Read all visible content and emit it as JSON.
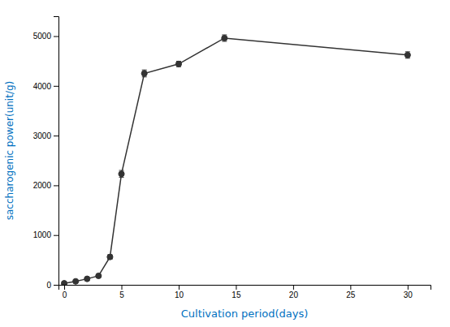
{
  "chart_data": {
    "type": "line",
    "xlabel": "Cultivation period(days)",
    "ylabel": "saccharogenic power(unit/g)",
    "x": [
      0,
      1,
      2,
      3,
      4,
      5,
      7,
      10,
      14,
      30
    ],
    "series": [
      {
        "values": [
          30,
          70,
          120,
          180,
          560,
          2230,
          4250,
          4440,
          4960,
          4620
        ],
        "errors": [
          15,
          20,
          25,
          25,
          45,
          70,
          70,
          55,
          65,
          65
        ],
        "color": "#333333",
        "marker": "circle",
        "line_style": "solid"
      }
    ],
    "xlim": [
      -0.5,
      32
    ],
    "ylim": [
      0,
      5400
    ],
    "xticks": [
      0,
      5,
      10,
      15,
      20,
      25,
      30
    ],
    "yticks": [
      0,
      1000,
      2000,
      3000,
      4000,
      5000
    ],
    "grid": false
  }
}
